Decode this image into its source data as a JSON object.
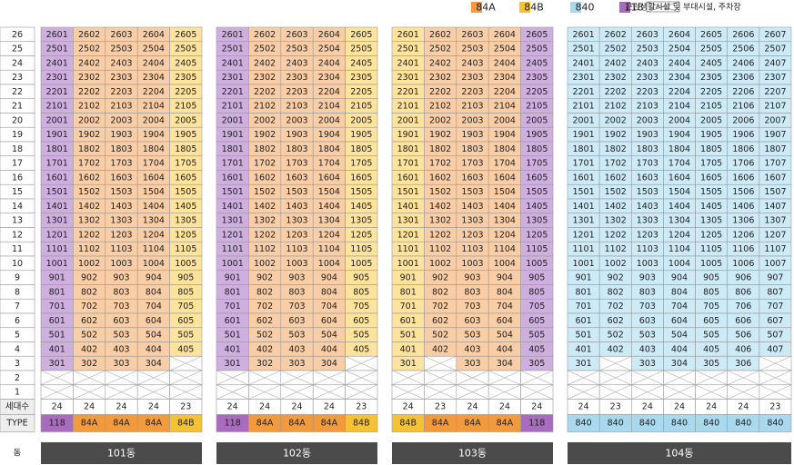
{
  "legend": [
    {
      "label": "84A",
      "color": "#f39a3c",
      "tint": "#f9cda6"
    },
    {
      "label": "84B",
      "color": "#f6c233",
      "tint": "#fde39c"
    },
    {
      "label": "840",
      "color": "#a9d9ee",
      "tint": "#cdeaf7"
    },
    {
      "label": "118",
      "color": "#a96bbf",
      "tint": "#cfaee0"
    },
    {
      "label": "근린생활시설 및 부대시설, 주차장"
    }
  ],
  "floors": [
    "26",
    "25",
    "24",
    "23",
    "22",
    "21",
    "20",
    "19",
    "18",
    "17",
    "16",
    "15",
    "14",
    "13",
    "12",
    "11",
    "10",
    "9",
    "8",
    "7",
    "6",
    "5",
    "4",
    "3",
    "2",
    "1"
  ],
  "count_label": "세대수",
  "type_label": "TYPE",
  "dong_label": "동",
  "buildings": [
    {
      "name": "101동",
      "rows": [
        [
          "2601",
          "2602",
          "2603",
          "2604",
          "2605"
        ],
        [
          "2501",
          "2502",
          "2503",
          "2504",
          "2505"
        ],
        [
          "2401",
          "2402",
          "2403",
          "2404",
          "2405"
        ],
        [
          "2301",
          "2302",
          "2303",
          "2304",
          "2305"
        ],
        [
          "2201",
          "2202",
          "2203",
          "2204",
          "2205"
        ],
        [
          "2101",
          "2102",
          "2103",
          "2104",
          "2105"
        ],
        [
          "2001",
          "2002",
          "2003",
          "2004",
          "2005"
        ],
        [
          "1901",
          "1902",
          "1903",
          "1904",
          "1905"
        ],
        [
          "1801",
          "1802",
          "1803",
          "1804",
          "1805"
        ],
        [
          "1701",
          "1702",
          "1703",
          "1704",
          "1705"
        ],
        [
          "1601",
          "1602",
          "1603",
          "1604",
          "1605"
        ],
        [
          "1501",
          "1502",
          "1503",
          "1504",
          "1505"
        ],
        [
          "1401",
          "1402",
          "1403",
          "1404",
          "1405"
        ],
        [
          "1301",
          "1302",
          "1303",
          "1304",
          "1305"
        ],
        [
          "1201",
          "1202",
          "1203",
          "1204",
          "1205"
        ],
        [
          "1101",
          "1102",
          "1103",
          "1104",
          "1105"
        ],
        [
          "1001",
          "1002",
          "1003",
          "1004",
          "1005"
        ],
        [
          "901",
          "902",
          "903",
          "904",
          "905"
        ],
        [
          "801",
          "802",
          "803",
          "804",
          "805"
        ],
        [
          "701",
          "702",
          "703",
          "704",
          "705"
        ],
        [
          "601",
          "602",
          "603",
          "604",
          "605"
        ],
        [
          "501",
          "502",
          "503",
          "504",
          "505"
        ],
        [
          "401",
          "402",
          "403",
          "404",
          "405"
        ],
        [
          "301",
          "302",
          "303",
          "304",
          null
        ]
      ],
      "counts": [
        "24",
        "24",
        "24",
        "24",
        "23"
      ],
      "types": [
        "118",
        "84A",
        "84A",
        "84A",
        "84B"
      ]
    },
    {
      "name": "102동",
      "rows": [
        [
          "2601",
          "2602",
          "2603",
          "2604",
          "2605"
        ],
        [
          "2501",
          "2502",
          "2503",
          "2504",
          "2505"
        ],
        [
          "2401",
          "2402",
          "2403",
          "2404",
          "2405"
        ],
        [
          "2301",
          "2302",
          "2303",
          "2304",
          "2305"
        ],
        [
          "2201",
          "2202",
          "2203",
          "2204",
          "2205"
        ],
        [
          "2101",
          "2102",
          "2103",
          "2104",
          "2105"
        ],
        [
          "2001",
          "2002",
          "2003",
          "2004",
          "2005"
        ],
        [
          "1901",
          "1902",
          "1903",
          "1904",
          "1905"
        ],
        [
          "1801",
          "1802",
          "1803",
          "1804",
          "1805"
        ],
        [
          "1701",
          "1702",
          "1703",
          "1704",
          "1705"
        ],
        [
          "1601",
          "1602",
          "1603",
          "1604",
          "1605"
        ],
        [
          "1501",
          "1502",
          "1503",
          "1504",
          "1505"
        ],
        [
          "1401",
          "1402",
          "1403",
          "1404",
          "1405"
        ],
        [
          "1301",
          "1302",
          "1303",
          "1304",
          "1305"
        ],
        [
          "1201",
          "1202",
          "1203",
          "1204",
          "1205"
        ],
        [
          "1101",
          "1102",
          "1103",
          "1104",
          "1105"
        ],
        [
          "1001",
          "1002",
          "1003",
          "1004",
          "1005"
        ],
        [
          "901",
          "902",
          "903",
          "904",
          "905"
        ],
        [
          "801",
          "802",
          "803",
          "804",
          "805"
        ],
        [
          "701",
          "702",
          "703",
          "704",
          "705"
        ],
        [
          "601",
          "602",
          "603",
          "604",
          "605"
        ],
        [
          "501",
          "502",
          "503",
          "504",
          "505"
        ],
        [
          "401",
          "402",
          "403",
          "404",
          "405"
        ],
        [
          "301",
          "302",
          "303",
          "304",
          null
        ]
      ],
      "counts": [
        "24",
        "24",
        "24",
        "24",
        "23"
      ],
      "types": [
        "118",
        "84A",
        "84A",
        "84A",
        "84B"
      ]
    },
    {
      "name": "103동",
      "rows": [
        [
          "2601",
          "2602",
          "2603",
          "2604",
          "2605"
        ],
        [
          "2501",
          "2502",
          "2503",
          "2504",
          "2505"
        ],
        [
          "2401",
          "2402",
          "2403",
          "2404",
          "2405"
        ],
        [
          "2301",
          "2302",
          "2303",
          "2304",
          "2305"
        ],
        [
          "2201",
          "2202",
          "2203",
          "2204",
          "2205"
        ],
        [
          "2101",
          "2102",
          "2103",
          "2104",
          "2105"
        ],
        [
          "2001",
          "2002",
          "2003",
          "2004",
          "2005"
        ],
        [
          "1901",
          "1902",
          "1903",
          "1904",
          "1905"
        ],
        [
          "1801",
          "1802",
          "1803",
          "1804",
          "1805"
        ],
        [
          "1701",
          "1702",
          "1703",
          "1704",
          "1705"
        ],
        [
          "1601",
          "1602",
          "1603",
          "1604",
          "1605"
        ],
        [
          "1501",
          "1502",
          "1503",
          "1504",
          "1505"
        ],
        [
          "1401",
          "1402",
          "1403",
          "1404",
          "1405"
        ],
        [
          "1301",
          "1302",
          "1303",
          "1304",
          "1305"
        ],
        [
          "1201",
          "1202",
          "1203",
          "1204",
          "1205"
        ],
        [
          "1101",
          "1102",
          "1103",
          "1104",
          "1105"
        ],
        [
          "1001",
          "1002",
          "1003",
          "1004",
          "1005"
        ],
        [
          "901",
          "902",
          "903",
          "904",
          "905"
        ],
        [
          "801",
          "802",
          "803",
          "804",
          "805"
        ],
        [
          "701",
          "702",
          "703",
          "704",
          "705"
        ],
        [
          "601",
          "602",
          "603",
          "604",
          "605"
        ],
        [
          "501",
          "502",
          "503",
          "504",
          "505"
        ],
        [
          "401",
          "402",
          "403",
          "404",
          "405"
        ],
        [
          "301",
          null,
          "303",
          "304",
          "305"
        ]
      ],
      "counts": [
        "24",
        "23",
        "24",
        "24",
        "24"
      ],
      "types": [
        "84B",
        "84A",
        "84A",
        "84A",
        "118"
      ]
    },
    {
      "name": "104동",
      "rows": [
        [
          "2601",
          "2602",
          "2603",
          "2604",
          "2605",
          "2606",
          "2607"
        ],
        [
          "2501",
          "2502",
          "2503",
          "2504",
          "2505",
          "2506",
          "2507"
        ],
        [
          "2401",
          "2402",
          "2403",
          "2404",
          "2405",
          "2406",
          "2407"
        ],
        [
          "2301",
          "2302",
          "2303",
          "2304",
          "2305",
          "2306",
          "2307"
        ],
        [
          "2201",
          "2202",
          "2203",
          "2204",
          "2205",
          "2206",
          "2207"
        ],
        [
          "2101",
          "2102",
          "2103",
          "2104",
          "2105",
          "2106",
          "2107"
        ],
        [
          "2001",
          "2002",
          "2003",
          "2004",
          "2005",
          "2006",
          "2007"
        ],
        [
          "1901",
          "1902",
          "1903",
          "1904",
          "1905",
          "1906",
          "1907"
        ],
        [
          "1801",
          "1802",
          "1803",
          "1804",
          "1805",
          "1806",
          "1807"
        ],
        [
          "1701",
          "1702",
          "1703",
          "1704",
          "1705",
          "1706",
          "1707"
        ],
        [
          "1601",
          "1602",
          "1603",
          "1604",
          "1605",
          "1606",
          "1607"
        ],
        [
          "1501",
          "1502",
          "1503",
          "1504",
          "1505",
          "1506",
          "1507"
        ],
        [
          "1401",
          "1402",
          "1403",
          "1404",
          "1405",
          "1406",
          "1407"
        ],
        [
          "1301",
          "1302",
          "1303",
          "1304",
          "1305",
          "1306",
          "1307"
        ],
        [
          "1201",
          "1202",
          "1203",
          "1204",
          "1205",
          "1206",
          "1207"
        ],
        [
          "1101",
          "1102",
          "1103",
          "1104",
          "1105",
          "1106",
          "1107"
        ],
        [
          "1001",
          "1002",
          "1003",
          "1004",
          "1005",
          "1006",
          "1007"
        ],
        [
          "901",
          "902",
          "903",
          "904",
          "905",
          "906",
          "907"
        ],
        [
          "801",
          "802",
          "803",
          "804",
          "805",
          "806",
          "807"
        ],
        [
          "701",
          "702",
          "703",
          "704",
          "705",
          "706",
          "707"
        ],
        [
          "601",
          "602",
          "603",
          "604",
          "605",
          "606",
          "607"
        ],
        [
          "501",
          "502",
          "503",
          "504",
          "505",
          "506",
          "507"
        ],
        [
          "401",
          "402",
          "403",
          "404",
          "405",
          "406",
          "407"
        ],
        [
          "301",
          null,
          "303",
          "304",
          "305",
          "306",
          null
        ]
      ],
      "counts": [
        "24",
        "23",
        "24",
        "24",
        "24",
        "24",
        "23"
      ],
      "types": [
        "840",
        "840",
        "840",
        "840",
        "840",
        "840",
        "840"
      ]
    }
  ]
}
